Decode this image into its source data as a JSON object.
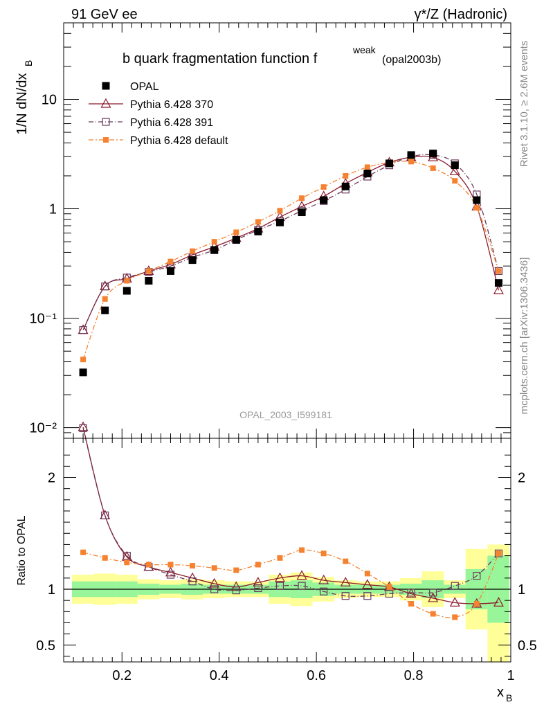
{
  "header": {
    "left": "91 GeV ee",
    "right": "γ*/Z (Hadronic)"
  },
  "side_labels": {
    "rivet_version": "Rivet 3.1.10, ≥ 2.6M events",
    "mcplots": "mcplots.cern.ch [arXiv:1306.3436]"
  },
  "chart_data": [
    {
      "type": "line",
      "panel": "main",
      "title": "b quark fragmentation function f",
      "title_sup": "weak",
      "title_sub": "(opal2003b)",
      "ylabel": "1/N dN/dx",
      "ylabel_sub": "B",
      "xlim": [
        0.08,
        1.0
      ],
      "ylim": [
        0.008,
        50
      ],
      "yscale": "log",
      "ytick_labels": [
        "10⁻²",
        "10⁻¹",
        "1",
        "10"
      ],
      "analysis_tag": "OPAL_2003_I599181",
      "legend_position": "top-left",
      "x": [
        0.12,
        0.165,
        0.21,
        0.255,
        0.3,
        0.345,
        0.39,
        0.435,
        0.48,
        0.525,
        0.57,
        0.615,
        0.66,
        0.705,
        0.75,
        0.795,
        0.84,
        0.885,
        0.93,
        0.975
      ],
      "series": [
        {
          "name": "OPAL",
          "marker": "filled-square",
          "color": "#000000",
          "values": [
            0.032,
            0.118,
            0.178,
            0.22,
            0.27,
            0.34,
            0.42,
            0.52,
            0.62,
            0.75,
            0.93,
            1.2,
            1.6,
            2.1,
            2.6,
            3.1,
            3.2,
            2.5,
            1.2,
            0.21
          ]
        },
        {
          "name": "Pythia 6.428 370",
          "marker": "open-triangle",
          "color": "#8b1a2b",
          "values": [
            0.078,
            0.196,
            0.23,
            0.27,
            0.31,
            0.38,
            0.45,
            0.54,
            0.66,
            0.84,
            1.05,
            1.3,
            1.7,
            2.15,
            2.65,
            2.95,
            2.95,
            2.2,
            1.05,
            0.18
          ]
        },
        {
          "name": "Pythia 6.428 391",
          "marker": "open-square",
          "color": "#6b3a5b",
          "values": [
            0.078,
            0.195,
            0.235,
            0.265,
            0.3,
            0.36,
            0.42,
            0.52,
            0.64,
            0.77,
            0.96,
            1.18,
            1.5,
            1.97,
            2.5,
            3.0,
            3.1,
            2.6,
            1.35,
            0.27
          ]
        },
        {
          "name": "Pythia 6.428 default",
          "marker": "small-filled-square",
          "color": "#f58231",
          "values": [
            0.042,
            0.15,
            0.22,
            0.27,
            0.33,
            0.41,
            0.5,
            0.61,
            0.76,
            0.96,
            1.25,
            1.58,
            2.0,
            2.4,
            2.65,
            2.7,
            2.35,
            1.8,
            1.02,
            0.27
          ]
        }
      ]
    },
    {
      "type": "line",
      "panel": "ratio",
      "ylabel": "Ratio to OPAL",
      "xlabel": "x",
      "xlabel_sub": "B",
      "xlim": [
        0.08,
        1.0
      ],
      "ylim": [
        0.35,
        2.35
      ],
      "xtick_labels": [
        "0.2",
        "0.4",
        "0.6",
        "0.8",
        "1"
      ],
      "ytick_labels": [
        "0.5",
        "1",
        "2"
      ],
      "reference_line": 1.0,
      "x": [
        0.12,
        0.165,
        0.21,
        0.255,
        0.3,
        0.345,
        0.39,
        0.435,
        0.48,
        0.525,
        0.57,
        0.615,
        0.66,
        0.705,
        0.75,
        0.795,
        0.84,
        0.885,
        0.93,
        0.975
      ],
      "bands": {
        "edges": [
          0.097,
          0.142,
          0.187,
          0.232,
          0.277,
          0.322,
          0.367,
          0.412,
          0.457,
          0.502,
          0.547,
          0.592,
          0.637,
          0.682,
          0.727,
          0.772,
          0.817,
          0.862,
          0.907,
          0.952,
          0.997
        ],
        "yellow_low": [
          0.87,
          0.86,
          0.87,
          0.91,
          0.92,
          0.91,
          0.92,
          0.93,
          0.93,
          0.87,
          0.85,
          0.89,
          0.92,
          0.93,
          0.93,
          0.9,
          0.84,
          0.92,
          0.64,
          0.35
        ],
        "yellow_high": [
          1.13,
          1.14,
          1.13,
          1.09,
          1.08,
          1.09,
          1.08,
          1.07,
          1.07,
          1.13,
          1.15,
          1.11,
          1.08,
          1.07,
          1.07,
          1.1,
          1.16,
          1.08,
          1.36,
          1.4
        ],
        "green_low": [
          0.93,
          0.93,
          0.93,
          0.95,
          0.96,
          0.95,
          0.96,
          0.96,
          0.96,
          0.93,
          0.92,
          0.94,
          0.96,
          0.96,
          0.96,
          0.95,
          0.92,
          0.96,
          0.82,
          0.7
        ],
        "green_high": [
          1.07,
          1.07,
          1.07,
          1.05,
          1.04,
          1.05,
          1.04,
          1.04,
          1.04,
          1.07,
          1.08,
          1.06,
          1.04,
          1.04,
          1.04,
          1.05,
          1.08,
          1.04,
          1.18,
          1.3
        ]
      },
      "series": [
        {
          "name": "Pythia 6.428 370",
          "marker": "open-triangle",
          "color": "#8b1a2b",
          "values": [
            2.45,
            1.66,
            1.29,
            1.2,
            1.15,
            1.1,
            1.05,
            1.02,
            1.06,
            1.1,
            1.12,
            1.08,
            1.06,
            1.04,
            1.02,
            0.96,
            0.92,
            0.88,
            0.87,
            0.88
          ]
        },
        {
          "name": "Pythia 6.428 391",
          "marker": "open-square",
          "color": "#6b3a5b",
          "values": [
            2.44,
            1.66,
            1.3,
            1.2,
            1.13,
            1.07,
            1.0,
            0.99,
            1.01,
            1.03,
            1.03,
            0.98,
            0.94,
            0.94,
            0.96,
            0.97,
            0.97,
            1.03,
            1.12,
            1.32
          ]
        },
        {
          "name": "Pythia 6.428 default",
          "marker": "small-filled-square",
          "color": "#f58231",
          "values": [
            1.33,
            1.28,
            1.24,
            1.22,
            1.22,
            1.21,
            1.19,
            1.17,
            1.22,
            1.28,
            1.35,
            1.32,
            1.25,
            1.14,
            1.02,
            0.87,
            0.78,
            0.75,
            0.87,
            1.32
          ]
        }
      ]
    }
  ]
}
